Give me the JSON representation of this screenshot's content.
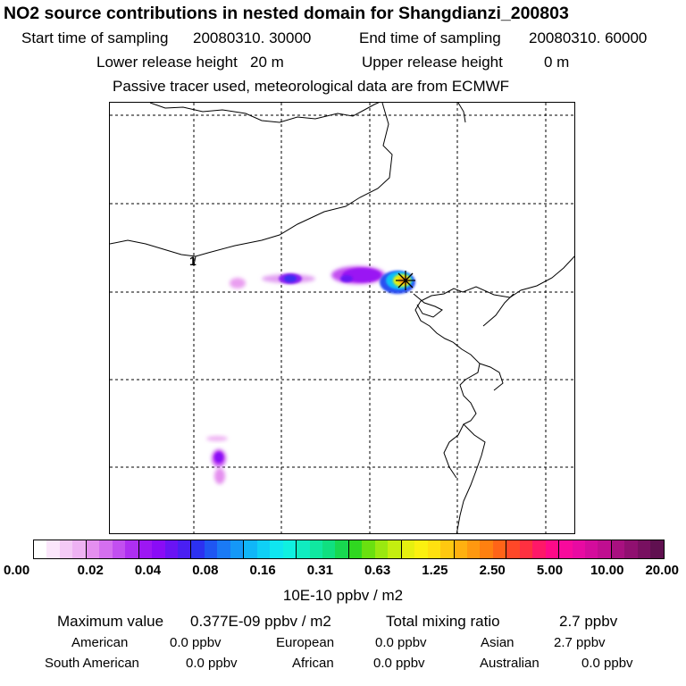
{
  "header": {
    "title": "NO2 source contributions in nested domain for Shangdianzi_200803",
    "start_label": "Start time of sampling",
    "start_value": "20080310. 30000",
    "end_label": "End time of sampling",
    "end_value": "20080310. 60000",
    "lower_label": "Lower release height",
    "lower_value": "20 m",
    "upper_label": "Upper release height",
    "upper_value": "0 m",
    "note": "Passive tracer used, meteorological data are from ECMWF"
  },
  "map": {
    "contour_label": "1",
    "receptor_marker": "asterisk-marker",
    "gridlines": "dashed"
  },
  "colorbar": {
    "unit": "10E-10 ppbv / m2",
    "tick_labels": [
      "0.00",
      "0.02",
      "0.04",
      "0.08",
      "0.16",
      "0.31",
      "0.63",
      "1.25",
      "2.50",
      "5.00",
      "10.00",
      "20.00"
    ],
    "colors": [
      "#ffffff",
      "#fbe6fb",
      "#f4caf6",
      "#eeb2f3",
      "#e48fef",
      "#d46fef",
      "#c24ff0",
      "#ae2ff1",
      "#9d17f3",
      "#8a0cf6",
      "#6a14f4",
      "#4a1ff2",
      "#2c31f0",
      "#1f56f2",
      "#1a7af5",
      "#1598f7",
      "#10b6f8",
      "#0fd0f6",
      "#0fe6f0",
      "#10f0e0",
      "#10ecc0",
      "#10e8a0",
      "#10e080",
      "#18d850",
      "#30d820",
      "#6ae010",
      "#9ae810",
      "#c4ee10",
      "#e6f010",
      "#fbf010",
      "#ffe010",
      "#ffc810",
      "#ffb010",
      "#ff9810",
      "#ff8010",
      "#ff6418",
      "#ff4828",
      "#ff3040",
      "#ff1868",
      "#ff0a88",
      "#f80a9c",
      "#e80aa2",
      "#d40c9c",
      "#c00e90",
      "#a81080",
      "#901070",
      "#781060",
      "#601050"
    ]
  },
  "footer": {
    "max_label": "Maximum value",
    "max_value": "0.377E-09 ppbv / m2",
    "total_label": "Total mixing ratio",
    "total_value": "2.7 ppbv",
    "regions": [
      {
        "name": "American",
        "value": "0.0 ppbv"
      },
      {
        "name": "European",
        "value": "0.0 ppbv"
      },
      {
        "name": "Asian",
        "value": "2.7 ppbv"
      },
      {
        "name": "South American",
        "value": "0.0 ppbv"
      },
      {
        "name": "African",
        "value": "0.0 ppbv"
      },
      {
        "name": "Australian",
        "value": "0.0 ppbv"
      }
    ]
  }
}
